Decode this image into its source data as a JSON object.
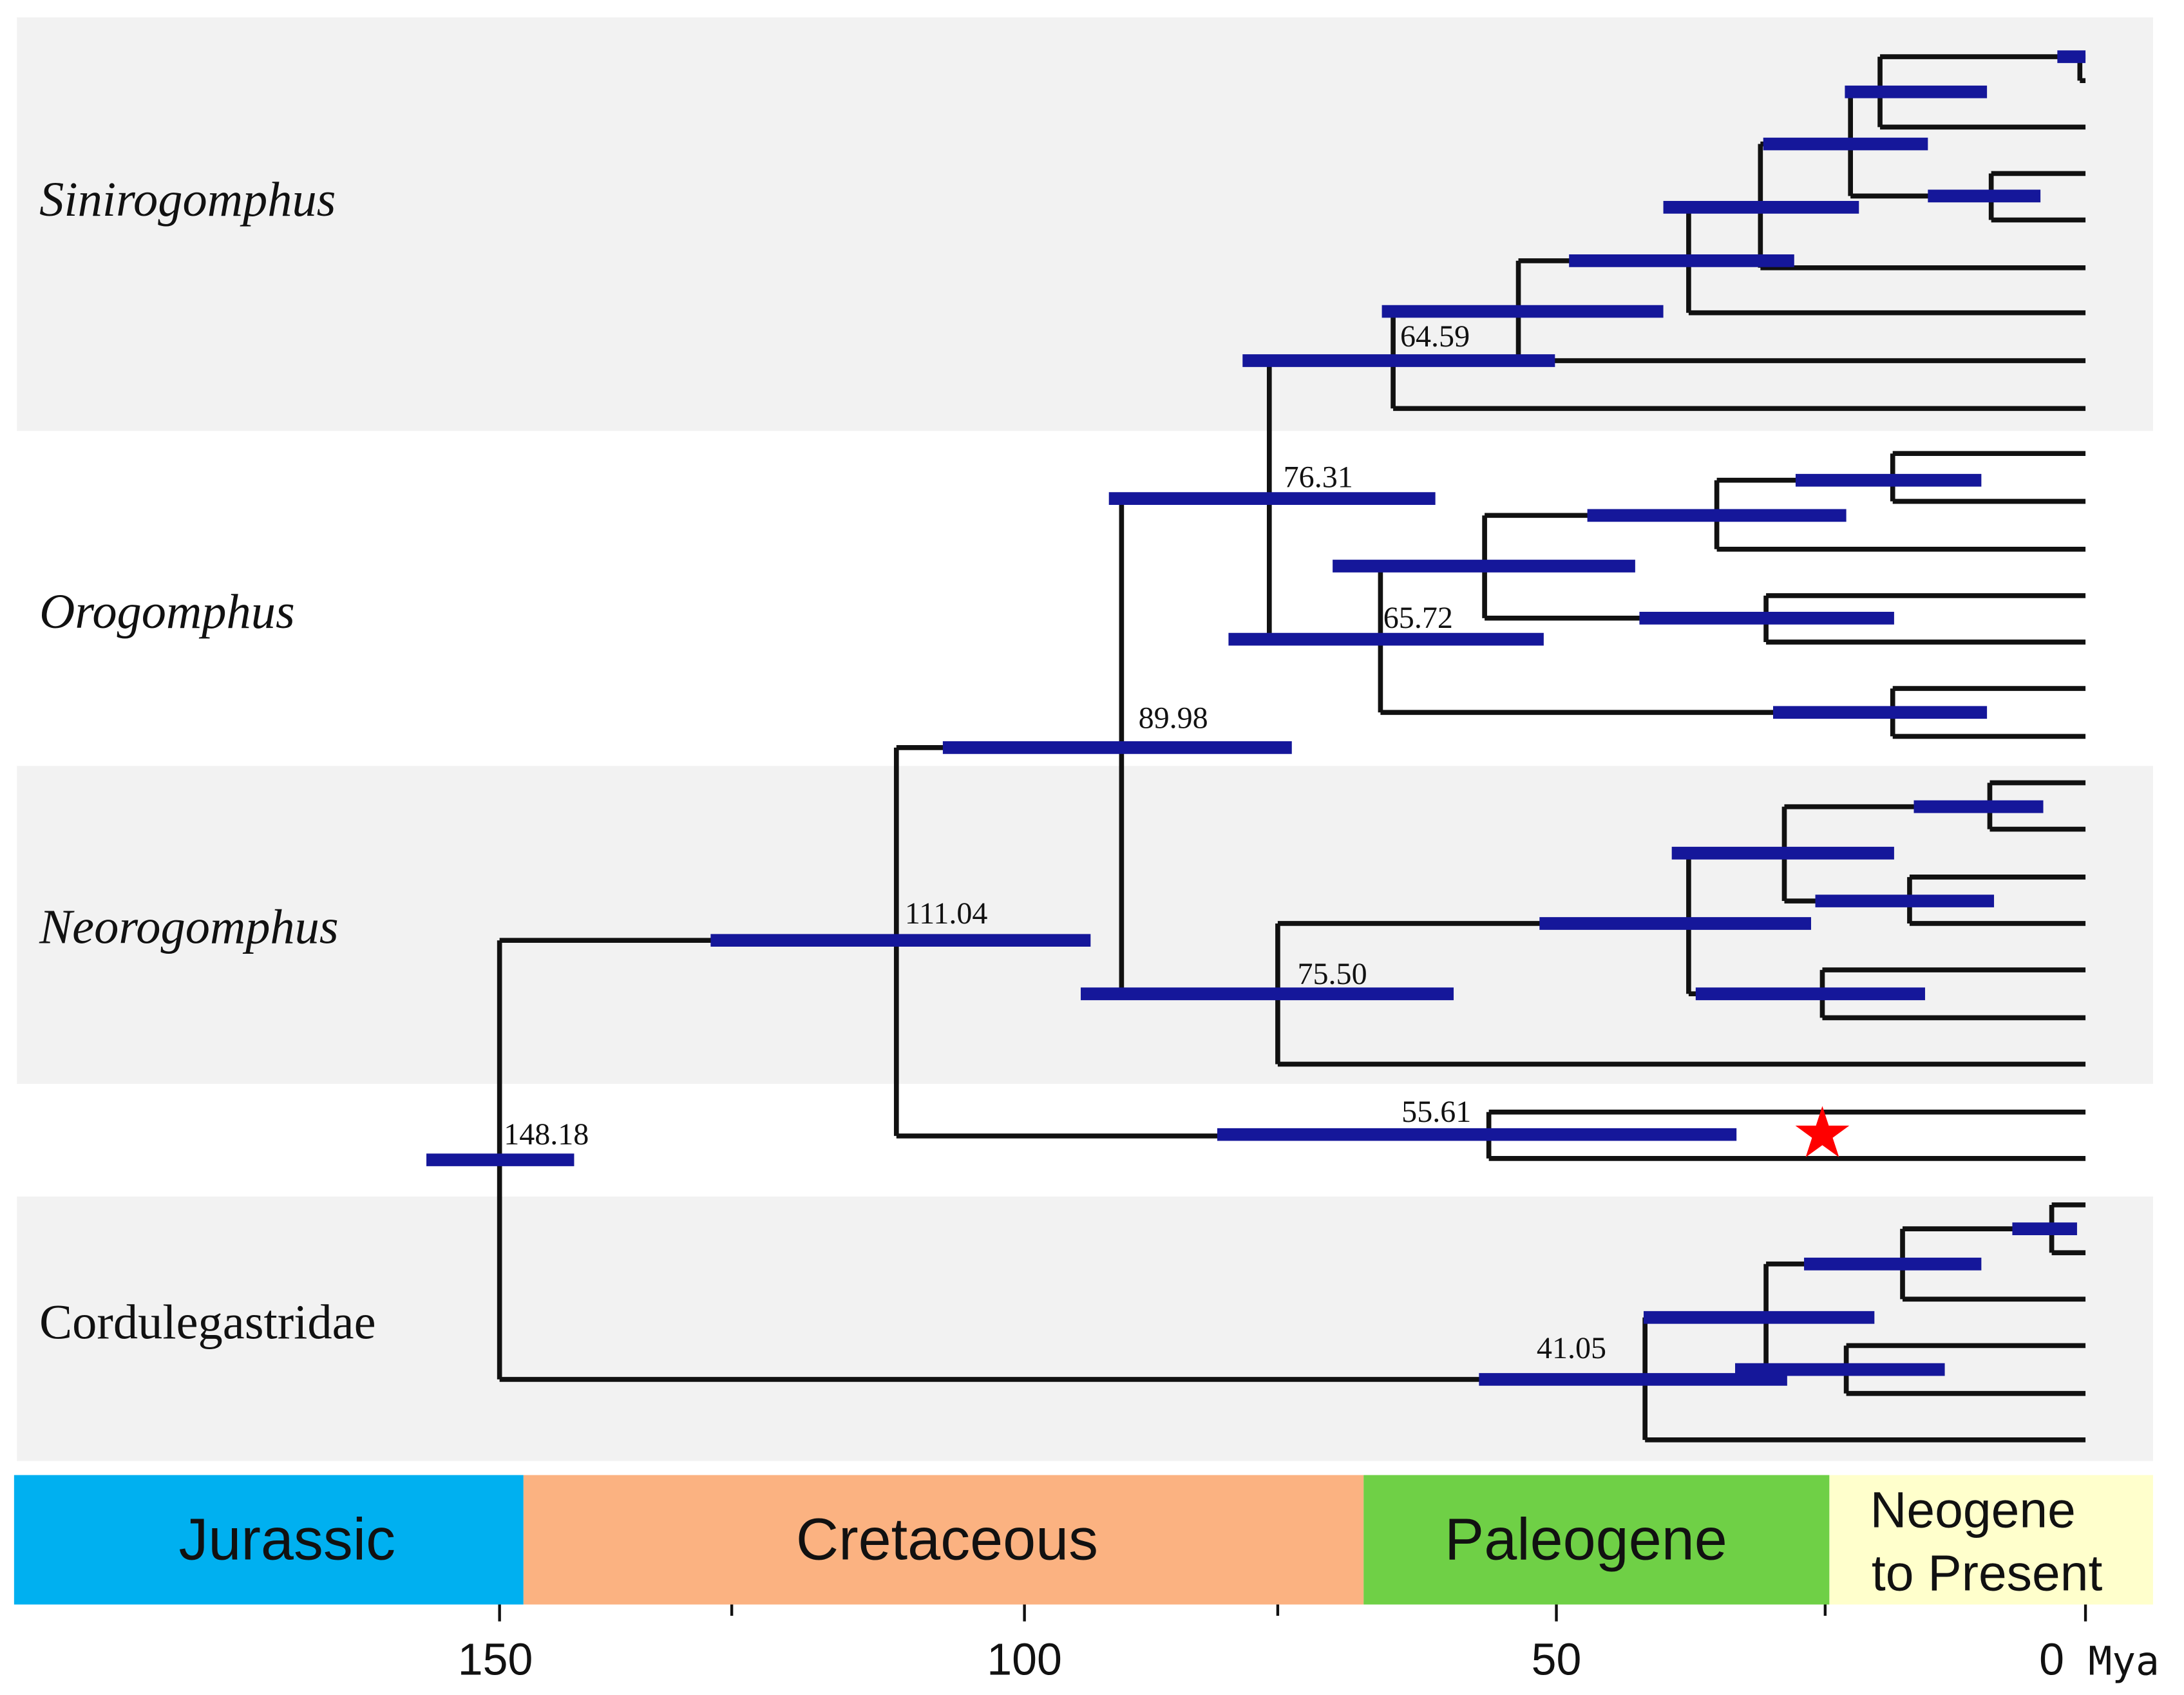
{
  "clades": [
    {
      "name": "Sinirogomphus",
      "italic": true,
      "shaded": true
    },
    {
      "name": "Orogomphus",
      "italic": true,
      "shaded": false
    },
    {
      "name": "Neorogomphus",
      "italic": true,
      "shaded": true
    },
    {
      "name": "",
      "italic": false,
      "shaded": false
    },
    {
      "name": "Cordulegastridae",
      "italic": false,
      "shaded": true
    }
  ],
  "node_labels": [
    {
      "age": "148.18",
      "age_mya": 148.18
    },
    {
      "age": "111.04",
      "age_mya": 111.04
    },
    {
      "age": "89.98",
      "age_mya": 89.98
    },
    {
      "age": "76.31",
      "age_mya": 76.31
    },
    {
      "age": "75.50",
      "age_mya": 75.5
    },
    {
      "age": "65.72",
      "age_mya": 65.72
    },
    {
      "age": "64.59",
      "age_mya": 64.59
    },
    {
      "age": "55.61",
      "age_mya": 55.61
    },
    {
      "age": "41.05",
      "age_mya": 41.05
    }
  ],
  "periods": [
    {
      "name": "Jurassic",
      "lines": [
        "Jurassic"
      ],
      "color": "#00b0f0",
      "from_mya": 201,
      "to_mya": 145
    },
    {
      "name": "Cretaceous",
      "lines": [
        "Cretaceous"
      ],
      "color": "#fbb281",
      "from_mya": 145,
      "to_mya": 66
    },
    {
      "name": "Paleogene",
      "lines": [
        "Paleogene"
      ],
      "color": "#6fd046",
      "from_mya": 66,
      "to_mya": 23
    },
    {
      "name": "Neogene to Present",
      "lines": [
        "Neogene",
        "to Present"
      ],
      "color": "#ffffcc",
      "from_mya": 23,
      "to_mya": -6.3
    }
  ],
  "axis": {
    "ticks": [
      150,
      100,
      50,
      0
    ],
    "tick_labels": [
      "150",
      "100",
      "50",
      "0"
    ],
    "minor_ticks": [
      125,
      75,
      25
    ],
    "unit": "Mya"
  },
  "marker": {
    "symbol": "★",
    "color": "#ff0000",
    "age_mya": 25
  }
}
